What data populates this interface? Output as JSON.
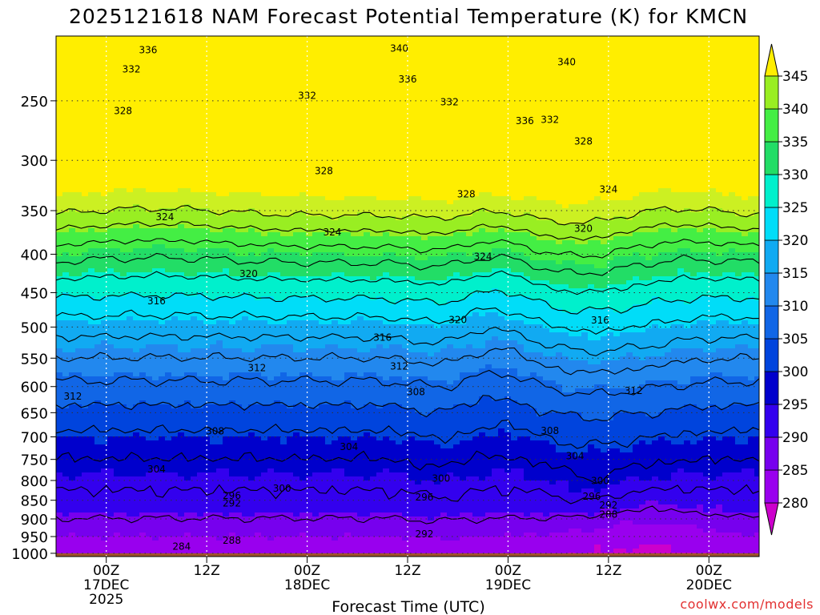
{
  "chart_data": {
    "type": "heatmap",
    "title": "2025121618 NAM Forecast Potential Temperature (K) for KMCN",
    "xlabel": "Forecast Time (UTC)",
    "ylabel": "",
    "credit": "coolwx.com/models",
    "x_ticks": [
      {
        "lines": [
          "00Z",
          "17DEC",
          "2025"
        ],
        "hours": 6
      },
      {
        "lines": [
          "12Z"
        ],
        "hours": 18
      },
      {
        "lines": [
          "00Z",
          "18DEC"
        ],
        "hours": 30
      },
      {
        "lines": [
          "12Z"
        ],
        "hours": 42
      },
      {
        "lines": [
          "00Z",
          "19DEC"
        ],
        "hours": 54
      },
      {
        "lines": [
          "12Z"
        ],
        "hours": 66
      },
      {
        "lines": [
          "00Z",
          "20DEC"
        ],
        "hours": 78
      }
    ],
    "xlim": [
      0,
      84
    ],
    "y_axis": "pressure (hPa), log scale, inverted",
    "y_ticks": [
      250,
      300,
      350,
      400,
      450,
      500,
      550,
      600,
      650,
      700,
      750,
      800,
      850,
      900,
      950,
      1000
    ],
    "ylim": [
      1010,
      205
    ],
    "colorbar": {
      "labels": [
        280,
        285,
        290,
        295,
        300,
        305,
        310,
        315,
        320,
        325,
        330,
        335,
        340,
        345
      ],
      "colors": [
        "#cc00cc",
        "#9900ee",
        "#7700ee",
        "#3300ee",
        "#0000cc",
        "#0044dd",
        "#1166e6",
        "#2288ee",
        "#11aaf2",
        "#00ddf8",
        "#00f0cc",
        "#22dd66",
        "#44ee44",
        "#99ee22",
        "#ccf022",
        "#ffee00"
      ]
    },
    "contour_labels": [
      {
        "hours": 11,
        "p": 214,
        "value": "336"
      },
      {
        "hours": 41,
        "p": 213,
        "value": "340"
      },
      {
        "hours": 9,
        "p": 227,
        "value": "332"
      },
      {
        "hours": 42,
        "p": 234,
        "value": "336"
      },
      {
        "hours": 61,
        "p": 222,
        "value": "340"
      },
      {
        "hours": 30,
        "p": 246,
        "value": "332"
      },
      {
        "hours": 47,
        "p": 251,
        "value": "332"
      },
      {
        "hours": 8,
        "p": 258,
        "value": "328"
      },
      {
        "hours": 56,
        "p": 266,
        "value": "336"
      },
      {
        "hours": 59,
        "p": 265,
        "value": "332"
      },
      {
        "hours": 63,
        "p": 283,
        "value": "328"
      },
      {
        "hours": 32,
        "p": 310,
        "value": "328"
      },
      {
        "hours": 49,
        "p": 333,
        "value": "328"
      },
      {
        "hours": 66,
        "p": 328,
        "value": "324"
      },
      {
        "hours": 13,
        "p": 357,
        "value": "324"
      },
      {
        "hours": 33,
        "p": 374,
        "value": "324"
      },
      {
        "hours": 63,
        "p": 370,
        "value": "320"
      },
      {
        "hours": 51,
        "p": 403,
        "value": "324"
      },
      {
        "hours": 23,
        "p": 425,
        "value": "320"
      },
      {
        "hours": 12,
        "p": 462,
        "value": "316"
      },
      {
        "hours": 48,
        "p": 489,
        "value": "320"
      },
      {
        "hours": 65,
        "p": 490,
        "value": "316"
      },
      {
        "hours": 39,
        "p": 516,
        "value": "316"
      },
      {
        "hours": 24,
        "p": 567,
        "value": "312"
      },
      {
        "hours": 41,
        "p": 564,
        "value": "312"
      },
      {
        "hours": 69,
        "p": 608,
        "value": "312"
      },
      {
        "hours": 2,
        "p": 618,
        "value": "312"
      },
      {
        "hours": 43,
        "p": 610,
        "value": "308"
      },
      {
        "hours": 19,
        "p": 688,
        "value": "308"
      },
      {
        "hours": 59,
        "p": 687,
        "value": "308"
      },
      {
        "hours": 35,
        "p": 722,
        "value": "304"
      },
      {
        "hours": 62,
        "p": 742,
        "value": "304"
      },
      {
        "hours": 12,
        "p": 773,
        "value": "304"
      },
      {
        "hours": 27,
        "p": 820,
        "value": "300"
      },
      {
        "hours": 46,
        "p": 795,
        "value": "300"
      },
      {
        "hours": 65,
        "p": 801,
        "value": "300"
      },
      {
        "hours": 21,
        "p": 838,
        "value": "296"
      },
      {
        "hours": 44,
        "p": 842,
        "value": "296"
      },
      {
        "hours": 64,
        "p": 840,
        "value": "296"
      },
      {
        "hours": 21,
        "p": 858,
        "value": "292"
      },
      {
        "hours": 66,
        "p": 863,
        "value": "292"
      },
      {
        "hours": 66,
        "p": 888,
        "value": "288"
      },
      {
        "hours": 44,
        "p": 943,
        "value": "292"
      },
      {
        "hours": 21,
        "p": 962,
        "value": "288"
      },
      {
        "hours": 15,
        "p": 980,
        "value": "284"
      }
    ]
  }
}
